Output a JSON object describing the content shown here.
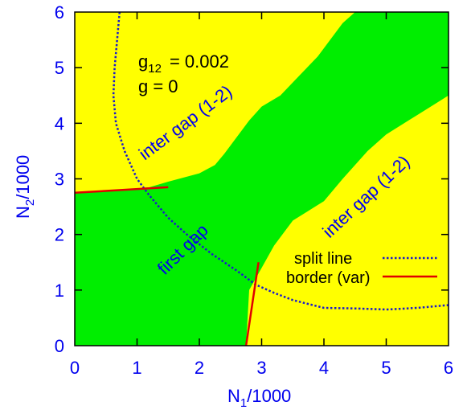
{
  "chart_data": {
    "type": "area",
    "xlabel": "N",
    "xlabel_sub": "1",
    "xlabel_suffix": "/1000",
    "ylabel": "N",
    "ylabel_sub": "2",
    "ylabel_suffix": "/1000",
    "xlim": [
      0,
      6
    ],
    "ylim": [
      0,
      6
    ],
    "xticks": [
      "0",
      "1",
      "2",
      "3",
      "4",
      "5",
      "6"
    ],
    "yticks": [
      "0",
      "1",
      "2",
      "3",
      "4",
      "5",
      "6"
    ],
    "grid": false,
    "colors": {
      "background": "#ffff00",
      "region": "#00ee00",
      "split_line": "#1a1acc",
      "border": "#e00000",
      "axis_text": "#0000ee",
      "frame": "#000000"
    },
    "first_gap_region": [
      [
        0,
        0
      ],
      [
        2.75,
        0
      ],
      [
        2.8,
        1.0
      ],
      [
        2.9,
        1.2
      ],
      [
        3.0,
        1.4
      ],
      [
        3.2,
        1.8
      ],
      [
        3.5,
        2.25
      ],
      [
        4.0,
        2.6
      ],
      [
        4.3,
        3.0
      ],
      [
        4.7,
        3.5
      ],
      [
        5.0,
        3.8
      ],
      [
        5.5,
        4.15
      ],
      [
        6,
        4.5
      ],
      [
        6,
        6
      ],
      [
        4.5,
        6
      ],
      [
        4.3,
        5.8
      ],
      [
        4.1,
        5.5
      ],
      [
        3.9,
        5.2
      ],
      [
        3.6,
        4.85
      ],
      [
        3.3,
        4.5
      ],
      [
        3.0,
        4.3
      ],
      [
        2.8,
        4.05
      ],
      [
        2.6,
        3.75
      ],
      [
        2.4,
        3.45
      ],
      [
        2.25,
        3.25
      ],
      [
        2.0,
        3.1
      ],
      [
        1.5,
        2.95
      ],
      [
        1.2,
        2.85
      ],
      [
        1.0,
        2.83
      ],
      [
        0.5,
        2.78
      ],
      [
        0,
        2.75
      ]
    ],
    "split_line": [
      [
        0.72,
        6.0
      ],
      [
        0.68,
        5.5
      ],
      [
        0.64,
        5.0
      ],
      [
        0.62,
        4.5
      ],
      [
        0.66,
        4.0
      ],
      [
        0.8,
        3.5
      ],
      [
        1.0,
        3.0
      ],
      [
        1.2,
        2.7
      ],
      [
        1.5,
        2.3
      ],
      [
        1.8,
        2.0
      ],
      [
        2.2,
        1.65
      ],
      [
        2.6,
        1.35
      ],
      [
        2.9,
        1.1
      ],
      [
        3.2,
        0.95
      ],
      [
        3.5,
        0.82
      ],
      [
        4.0,
        0.68
      ],
      [
        4.5,
        0.67
      ],
      [
        5.0,
        0.65
      ],
      [
        5.5,
        0.68
      ],
      [
        6.0,
        0.73
      ]
    ],
    "border_segments": [
      [
        [
          0,
          2.75
        ],
        [
          1.5,
          2.85
        ]
      ],
      [
        [
          2.75,
          0
        ],
        [
          2.95,
          1.5
        ]
      ]
    ],
    "annotations": {
      "g12_label": "g",
      "g12_sub": "12",
      "g12_value": "= 0.002",
      "g_line": "g  = 0",
      "inter_gap_upper": "inter gap (1-2)",
      "inter_gap_lower": "inter gap (1-2)",
      "first_gap": "first gap"
    },
    "legend": {
      "position": "bottom-right",
      "entries": [
        {
          "label": "split line",
          "style": "dotted"
        },
        {
          "label": "border (var)",
          "style": "solid"
        }
      ]
    }
  }
}
